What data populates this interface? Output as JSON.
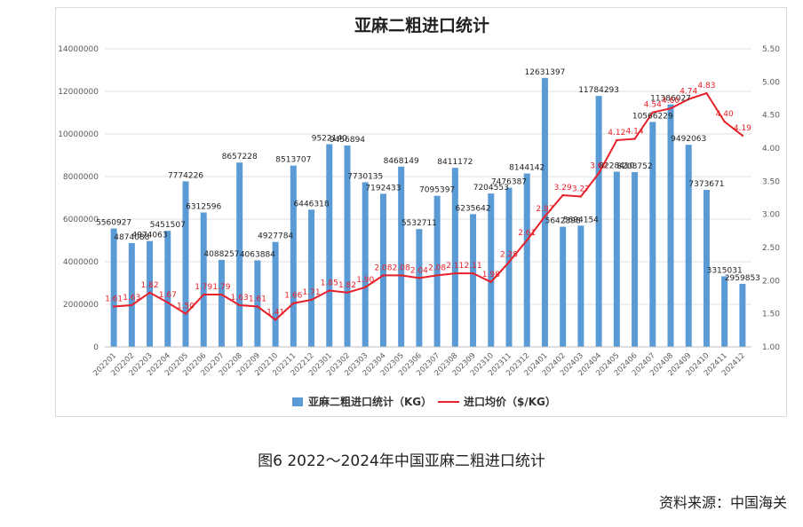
{
  "chart_data": {
    "type": "bar",
    "title": "亚麻二粗进口统计",
    "categories": [
      "202201",
      "202202",
      "202203",
      "202204",
      "202205",
      "202206",
      "202207",
      "202208",
      "202209",
      "202210",
      "202211",
      "202212",
      "202301",
      "202302",
      "202303",
      "202304",
      "202305",
      "202306",
      "202307",
      "202308",
      "202309",
      "202310",
      "202311",
      "202312",
      "202401",
      "202402",
      "202403",
      "202404",
      "202405",
      "202406",
      "202407",
      "202408",
      "202409",
      "202410",
      "202411",
      "202412"
    ],
    "series": [
      {
        "name": "亚麻二粗进口统计（KG）",
        "type": "bar",
        "axis": "left",
        "color": "#5b9bd5",
        "values": [
          5560927,
          4874088,
          4974063,
          5451507,
          7774226,
          6312596,
          4088257,
          8657228,
          4063884,
          4927784,
          8513707,
          6446318,
          9522140,
          9456894,
          7730135,
          7192433,
          8468149,
          5532711,
          7095397,
          8411172,
          6235642,
          7204553,
          7476387,
          8144142,
          12631397,
          5642398,
          5694154,
          11784293,
          8228410,
          8208752,
          10566229,
          11386027,
          9492063,
          7373671,
          3315031,
          2959853
        ],
        "labels": [
          "5560927",
          "4874088",
          "4974063",
          "5451507",
          "7774226",
          "6312596",
          "4088257",
          "8657228",
          "4063884",
          "4927784",
          "8513707",
          "6446318",
          "9522140",
          "9456894",
          "7730135",
          "7192433",
          "8468149",
          "5532711",
          "7095397",
          "8411172",
          "6235642",
          "7204553",
          "7476387",
          "8144142",
          "12631397",
          "5642398",
          "5694154",
          "11784293",
          "8228410",
          "8208752",
          "10566229",
          "11386027",
          "9492063",
          "7373671",
          "3315031",
          "2959853"
        ]
      },
      {
        "name": "进口均价（$/KG）",
        "type": "line",
        "axis": "right",
        "color": "#e8202a",
        "values": [
          1.61,
          1.63,
          1.82,
          1.67,
          1.5,
          1.79,
          1.79,
          1.63,
          1.61,
          1.41,
          1.66,
          1.71,
          1.85,
          1.82,
          1.9,
          2.08,
          2.08,
          2.04,
          2.08,
          2.11,
          2.11,
          1.98,
          2.28,
          2.61,
          2.97,
          3.29,
          3.27,
          3.62,
          4.12,
          4.14,
          4.54,
          4.6,
          4.74,
          4.83,
          4.4,
          4.19
        ],
        "labels": [
          "1.61",
          "1.63",
          "1.82",
          "1.67",
          "1.50",
          "1.79",
          "1.79",
          "1.63",
          "1.61",
          "1.41",
          "1.66",
          "1.71",
          "1.85",
          "1.82",
          "1.90",
          "2.08",
          "2.08",
          "2.04",
          "2.08",
          "2.11",
          "2.11",
          "1.98",
          "2.28",
          "2.61",
          "2.97",
          "3.29",
          "3.27",
          "3.62",
          "4.12",
          "4.14",
          "4.54",
          "4.60",
          "4.74",
          "4.83",
          "4.40",
          "4.19"
        ]
      }
    ],
    "left_axis": {
      "ylim": [
        0,
        14000000
      ],
      "ticks": [
        0,
        2000000,
        4000000,
        6000000,
        8000000,
        10000000,
        12000000,
        14000000
      ],
      "tick_labels": [
        "0",
        "2000000",
        "4000000",
        "6000000",
        "8000000",
        "10000000",
        "12000000",
        "14000000"
      ]
    },
    "right_axis": {
      "ylim": [
        1.0,
        5.5
      ],
      "ticks": [
        1.0,
        1.5,
        2.0,
        2.5,
        3.0,
        3.5,
        4.0,
        4.5,
        5.0,
        5.5
      ],
      "tick_labels": [
        "1.00",
        "1.50",
        "2.00",
        "2.50",
        "3.00",
        "3.50",
        "4.00",
        "4.50",
        "5.00",
        "5.50"
      ]
    },
    "grid": true,
    "legend_position": "bottom"
  },
  "caption": "图6  2022～2024年中国亚麻二粗进口统计",
  "source": "资料来源：中国海关"
}
